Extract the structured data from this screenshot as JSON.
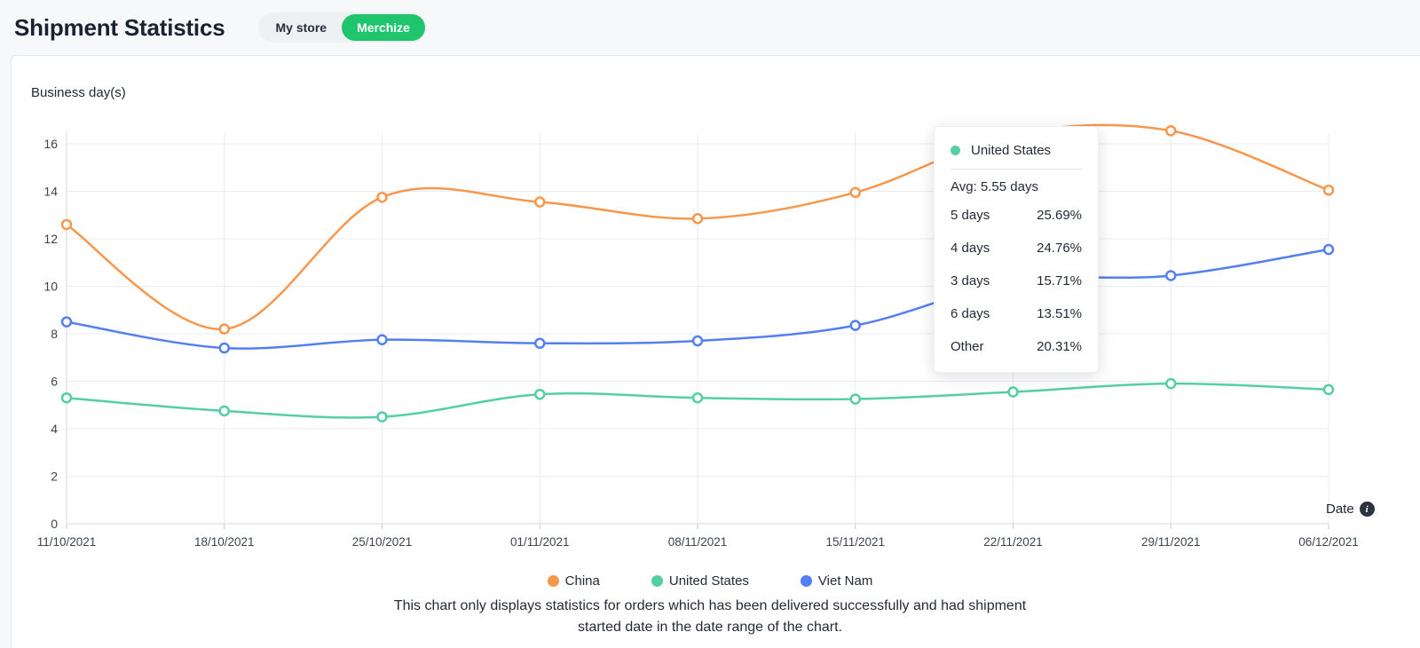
{
  "header": {
    "title": "Shipment Statistics",
    "store_toggle": {
      "my_store_label": "My store",
      "merchize_label": "Merchize",
      "active": "Merchize",
      "active_color": "#1fc56d"
    }
  },
  "chart_card": {
    "y_axis_title": "Business day(s)",
    "x_axis_title": "Date",
    "info_icon": "i",
    "footnote": "This chart only displays statistics for orders which has been delivered successfully and had shipment started date in the date range of the chart."
  },
  "tooltip": {
    "series_name": "United States",
    "dot_color": "#53cfa1",
    "avg_label": "Avg: 5.55 days",
    "rows": [
      {
        "label": "5 days",
        "value": "25.69%"
      },
      {
        "label": "4 days",
        "value": "24.76%"
      },
      {
        "label": "3 days",
        "value": "15.71%"
      },
      {
        "label": "6 days",
        "value": "13.51%"
      },
      {
        "label": "Other",
        "value": "20.31%"
      }
    ]
  },
  "chart_data": {
    "type": "line",
    "title": "Shipment Statistics",
    "xlabel": "Date",
    "ylabel": "Business day(s)",
    "ylim": [
      0,
      16
    ],
    "ytick_step": 2,
    "grid": true,
    "legend_position": "bottom",
    "categories": [
      "11/10/2021",
      "18/10/2021",
      "25/10/2021",
      "01/11/2021",
      "08/11/2021",
      "15/11/2021",
      "22/11/2021",
      "29/11/2021",
      "06/12/2021"
    ],
    "series": [
      {
        "name": "China",
        "color": "#f8964b",
        "values": [
          12.6,
          8.2,
          13.75,
          13.55,
          12.85,
          13.95,
          16.4,
          16.55,
          14.05
        ]
      },
      {
        "name": "United States",
        "color": "#53cfa1",
        "values": [
          5.3,
          4.75,
          4.5,
          5.45,
          5.3,
          5.25,
          5.55,
          5.9,
          5.65
        ]
      },
      {
        "name": "Viet Nam",
        "color": "#537ff2",
        "values": [
          8.5,
          7.4,
          7.75,
          7.6,
          7.7,
          8.35,
          10.2,
          10.45,
          11.55
        ]
      }
    ]
  }
}
